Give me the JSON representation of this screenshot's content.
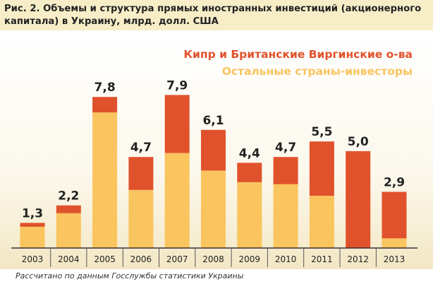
{
  "title": "Рис. 2. Объемы и структура прямых иностранных инвестиций (акционерного капитала) в Украину, млрд. долл. США",
  "source_note": "Рассчитано по данным Госслужбы статистики Украины",
  "colors": {
    "cyprus_bvi": "#e0522b",
    "other": "#fac45e",
    "header_bg": "#f7eec8"
  },
  "chart_data": {
    "type": "bar",
    "stacked": true,
    "categories": [
      "2003",
      "2004",
      "2005",
      "2006",
      "2007",
      "2008",
      "2009",
      "2010",
      "2011",
      "2012",
      "2013"
    ],
    "totals_labels": [
      "1,3",
      "2,2",
      "7,8",
      "4,7",
      "7,9",
      "6,1",
      "4,4",
      "4,7",
      "5,5",
      "5,0",
      "2,9"
    ],
    "series": [
      {
        "name": "Остальные страны-инвесторы",
        "values": [
          1.1,
          1.8,
          7.0,
          3.0,
          4.9,
          4.0,
          3.4,
          3.3,
          2.7,
          0.0,
          0.5
        ]
      },
      {
        "name": "Кипр и Британские Виргинские о-ва",
        "values": [
          0.2,
          0.4,
          0.8,
          1.7,
          3.0,
          2.1,
          1.0,
          1.4,
          2.8,
          5.0,
          2.4
        ]
      }
    ],
    "ylim": [
      0,
      8.5
    ],
    "legend_position": "top-right",
    "grid": false
  }
}
